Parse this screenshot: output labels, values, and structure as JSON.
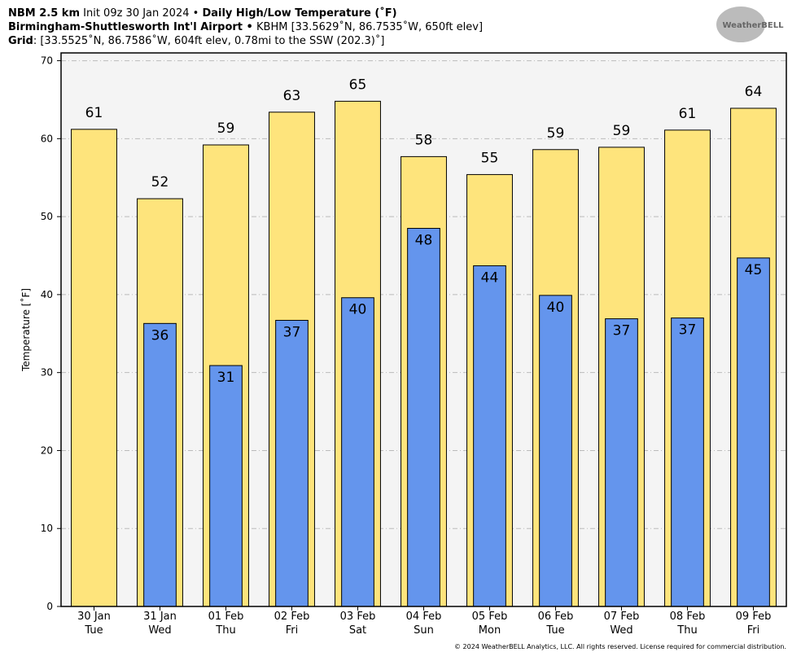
{
  "chart_data": {
    "type": "bar",
    "model": "NBM 2.5 km",
    "init": "Init 09z 30 Jan 2024 •",
    "title": "Daily High/Low Temperature (˚F)",
    "location": "Birmingham-Shuttlesworth Int'l Airport •",
    "station": "KBHM [33.5629˚N, 86.7535˚W, 650ft elev]",
    "grid_label": "Grid",
    "grid_info": ": [33.5525˚N, 86.7586˚W, 604ft elev, 0.78mi to the SSW (202.3)˚]",
    "logo": "WeatherBELL",
    "copyright": "© 2024 WeatherBELL Analytics, LLC. All rights reserved. License required for commercial distribution.",
    "y_label": "Temperature [˚F]",
    "categories": [
      "30 Jan",
      "31 Jan",
      "01 Feb",
      "02 Feb",
      "03 Feb",
      "04 Feb",
      "05 Feb",
      "06 Feb",
      "07 Feb",
      "08 Feb",
      "09 Feb"
    ],
    "weekdays": [
      "Tue",
      "Wed",
      "Thu",
      "Fri",
      "Sat",
      "Sun",
      "Mon",
      "Tue",
      "Wed",
      "Thu",
      "Fri"
    ],
    "series": [
      {
        "color": "#fee47c",
        "values": [
          61.2,
          52.3,
          59.2,
          63.4,
          64.8,
          57.7,
          55.4,
          58.6,
          58.9,
          61.1,
          63.9
        ],
        "value_labels": [
          "61",
          "52",
          "59",
          "63",
          "65",
          "58",
          "55",
          "59",
          "59",
          "61",
          "64"
        ]
      },
      {
        "color": "#6495ed",
        "values": [
          null,
          36.3,
          30.9,
          36.7,
          39.6,
          48.5,
          43.7,
          39.9,
          36.9,
          37.0,
          44.7
        ],
        "value_labels": [
          null,
          "36",
          "31",
          "37",
          "40",
          "48",
          "44",
          "40",
          "37",
          "37",
          "45"
        ]
      }
    ],
    "ylim": [
      0,
      71
    ],
    "yticks": [
      0,
      10,
      20,
      30,
      40,
      50,
      60,
      70
    ],
    "grid": true
  }
}
